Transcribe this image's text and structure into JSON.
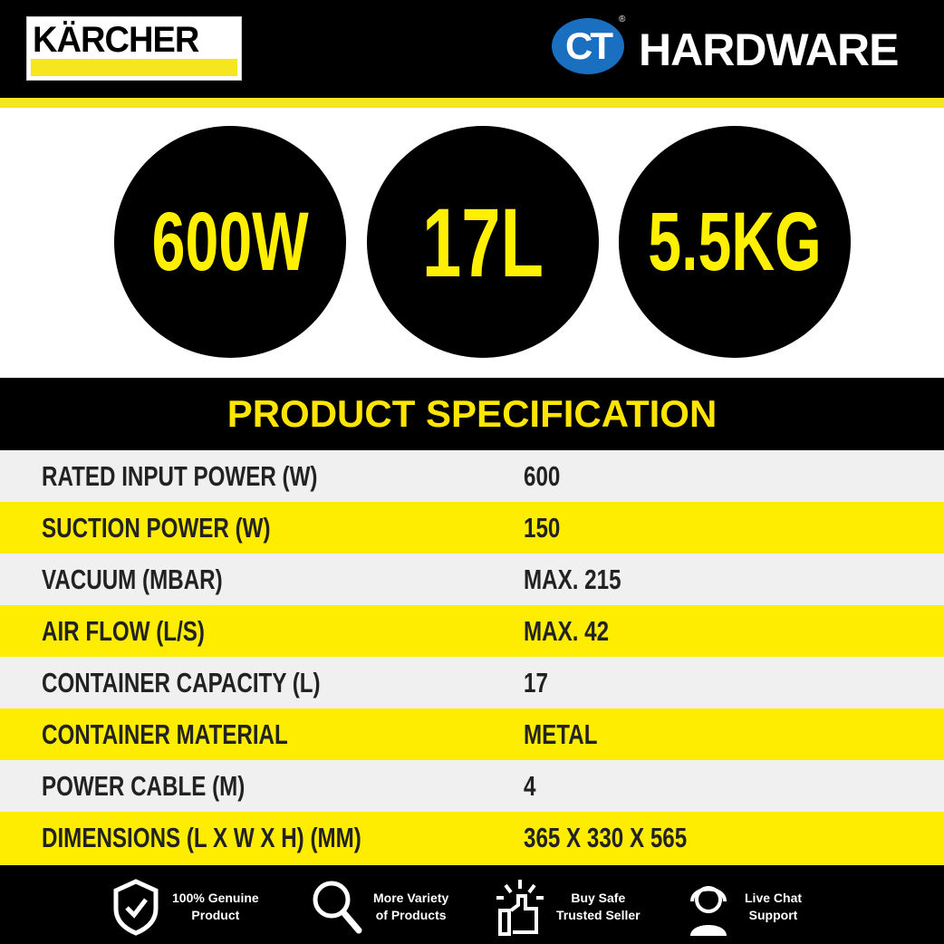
{
  "header": {
    "brand_logo": "KÄRCHER",
    "retailer_logo_mark": "CT",
    "retailer_name": "HARDWARE",
    "registered": "®"
  },
  "highlights": [
    "600W",
    "17L",
    "5.5KG"
  ],
  "spec": {
    "title": "PRODUCT SPECIFICATION",
    "rows": [
      {
        "label": "RATED INPUT POWER (W)",
        "value": "600"
      },
      {
        "label": "SUCTION POWER (W)",
        "value": "150"
      },
      {
        "label": "VACUUM (MBAR)",
        "value": "MAX. 215"
      },
      {
        "label": "AIR FLOW (L/S)",
        "value": "MAX. 42"
      },
      {
        "label": "CONTAINER CAPACITY (L)",
        "value": "17"
      },
      {
        "label": "CONTAINER MATERIAL",
        "value": "METAL"
      },
      {
        "label": "POWER CABLE (M)",
        "value": "4"
      },
      {
        "label": "DIMENSIONS (L X W X H) (MM)",
        "value": "365 X 330 X 565"
      }
    ]
  },
  "colors": {
    "yellow": "#ffed00",
    "gray_row": "#f0f0f0",
    "black": "#000000",
    "ct_blue": "#1b6fc0"
  },
  "footer": [
    {
      "icon": "shield-check-icon",
      "line1": "100% Genuine",
      "line2": "Product"
    },
    {
      "icon": "magnifier-icon",
      "line1": "More Variety",
      "line2": "of Products"
    },
    {
      "icon": "thumbs-up-icon",
      "line1": "Buy Safe",
      "line2": "Trusted Seller"
    },
    {
      "icon": "headset-agent-icon",
      "line1": "Live Chat",
      "line2": "Support"
    }
  ]
}
